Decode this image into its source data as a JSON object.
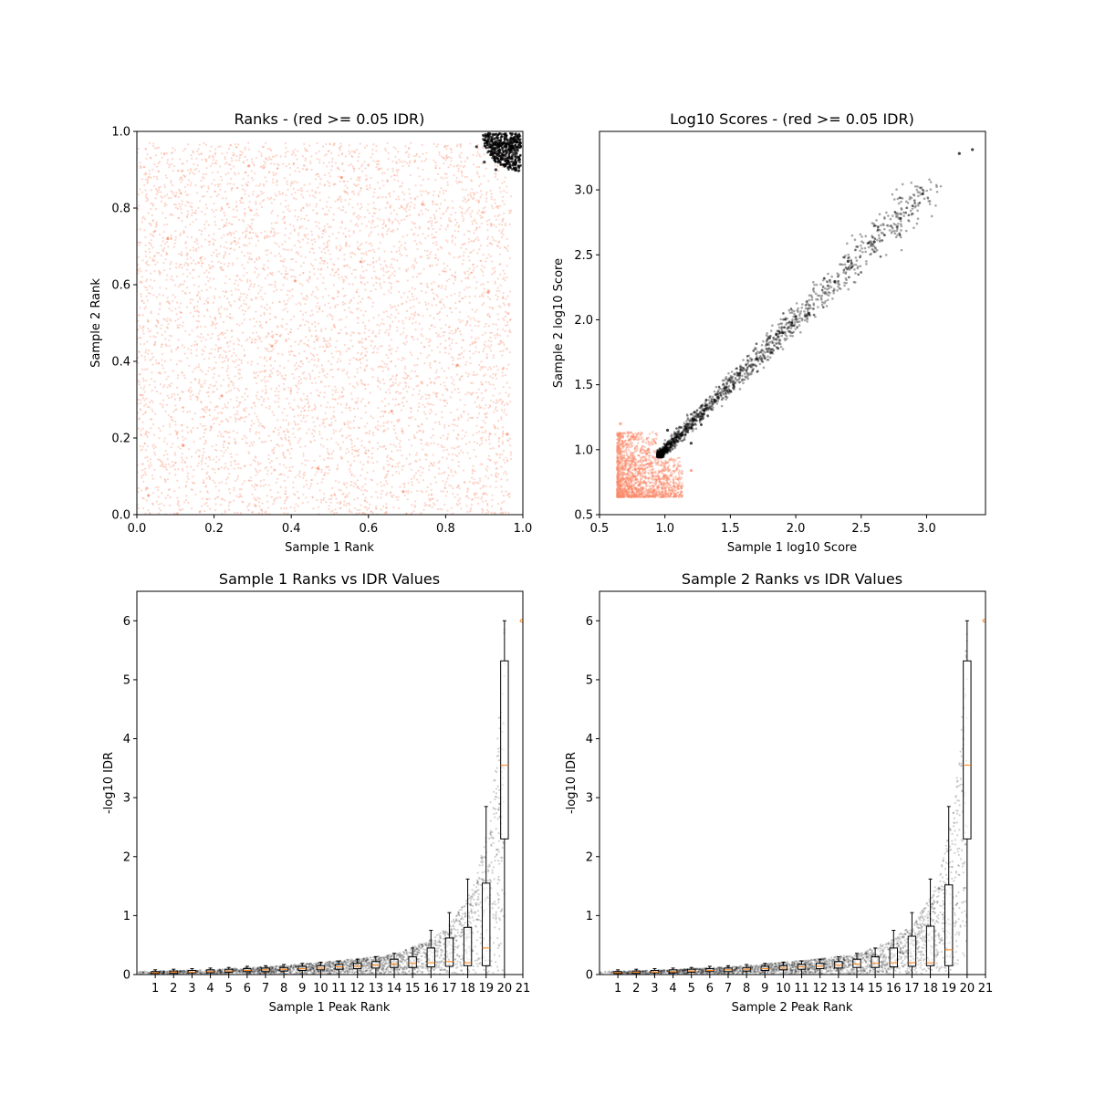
{
  "colors": {
    "pass": "#000000",
    "fail": "#fa8a6b",
    "median": "#ff7f0e",
    "box": "#000000",
    "background": "#ffffff"
  },
  "chart_data": [
    {
      "type": "scatter",
      "title": "Ranks - (red >= 0.05 IDR)",
      "xlabel": "Sample 1 Rank",
      "ylabel": "Sample 2 Rank",
      "xlim": [
        0,
        1
      ],
      "ylim": [
        0,
        1
      ],
      "xticks": [
        "0.0",
        "0.2",
        "0.4",
        "0.6",
        "0.8",
        "1.0"
      ],
      "yticks": [
        "0.0",
        "0.2",
        "0.4",
        "0.6",
        "0.8",
        "1.0"
      ],
      "grid": false,
      "series": [
        {
          "color": "fail",
          "points": [
            [
              0.03,
              0.05
            ],
            [
              0.12,
              0.18
            ],
            [
              0.22,
              0.31
            ],
            [
              0.35,
              0.44
            ],
            [
              0.47,
              0.12
            ],
            [
              0.58,
              0.66
            ],
            [
              0.66,
              0.27
            ],
            [
              0.74,
              0.81
            ],
            [
              0.83,
              0.39
            ],
            [
              0.91,
              0.58
            ],
            [
              0.08,
              0.72
            ],
            [
              0.29,
              0.91
            ],
            [
              0.41,
              0.61
            ],
            [
              0.53,
              0.88
            ],
            [
              0.69,
              0.06
            ],
            [
              0.96,
              0.21
            ]
          ]
        },
        {
          "color": "pass",
          "points": [
            [
              0.88,
              0.96
            ],
            [
              0.9,
              0.92
            ],
            [
              0.91,
              0.99
            ],
            [
              0.93,
              0.9
            ],
            [
              0.94,
              0.95
            ],
            [
              0.96,
              0.93
            ],
            [
              0.97,
              0.98
            ],
            [
              0.99,
              0.99
            ],
            [
              0.95,
              0.97
            ],
            [
              0.92,
              0.94
            ]
          ]
        }
      ]
    },
    {
      "type": "scatter",
      "title": "Log10 Scores - (red >= 0.05 IDR)",
      "xlabel": "Sample 1 log10 Score",
      "ylabel": "Sample 2 log10 Score",
      "xlim": [
        0.5,
        3.45
      ],
      "ylim": [
        0.5,
        3.45
      ],
      "xticks": [
        "0.5",
        "1.0",
        "1.5",
        "2.0",
        "2.5",
        "3.0"
      ],
      "yticks": [
        "0.5",
        "1.0",
        "1.5",
        "2.0",
        "2.5",
        "3.0"
      ],
      "grid": false,
      "series": [
        {
          "color": "fail",
          "points": [
            [
              0.64,
              0.64
            ],
            [
              0.7,
              0.75
            ],
            [
              0.8,
              0.68
            ],
            [
              0.9,
              0.9
            ],
            [
              0.75,
              1.1
            ],
            [
              1.0,
              0.8
            ],
            [
              1.1,
              0.72
            ],
            [
              1.2,
              0.84
            ],
            [
              0.66,
              1.2
            ],
            [
              0.86,
              0.97
            ]
          ]
        },
        {
          "color": "pass",
          "points": [
            [
              0.95,
              0.96
            ],
            [
              1.02,
              1.15
            ],
            [
              1.2,
              1.05
            ],
            [
              1.3,
              1.3
            ],
            [
              1.5,
              1.45
            ],
            [
              1.7,
              1.7
            ],
            [
              1.9,
              1.9
            ],
            [
              2.1,
              2.05
            ],
            [
              2.4,
              2.45
            ],
            [
              2.6,
              2.6
            ],
            [
              2.8,
              2.78
            ],
            [
              2.97,
              2.97
            ],
            [
              3.25,
              3.28
            ],
            [
              3.35,
              3.31
            ]
          ]
        }
      ]
    },
    {
      "type": "box",
      "title": "Sample 1 Ranks vs IDR Values",
      "xlabel": "Sample 1 Peak Rank",
      "ylabel": "-log10 IDR",
      "xlim": [
        0,
        21
      ],
      "ylim": [
        0,
        6.5
      ],
      "xticks": [
        "1",
        "2",
        "3",
        "4",
        "5",
        "6",
        "7",
        "8",
        "9",
        "10",
        "11",
        "12",
        "13",
        "14",
        "15",
        "16",
        "17",
        "18",
        "19",
        "20",
        "21"
      ],
      "yticks": [
        "0",
        "1",
        "2",
        "3",
        "4",
        "5",
        "6"
      ],
      "grid": false,
      "boxes": [
        {
          "position": 1,
          "q1": 0.02,
          "median": 0.03,
          "q3": 0.05,
          "whisker_low": 0.0,
          "whisker_high": 0.08
        },
        {
          "position": 2,
          "q1": 0.02,
          "median": 0.04,
          "q3": 0.06,
          "whisker_low": 0.0,
          "whisker_high": 0.09
        },
        {
          "position": 3,
          "q1": 0.03,
          "median": 0.04,
          "q3": 0.07,
          "whisker_low": 0.0,
          "whisker_high": 0.1
        },
        {
          "position": 4,
          "q1": 0.03,
          "median": 0.05,
          "q3": 0.08,
          "whisker_low": 0.0,
          "whisker_high": 0.11
        },
        {
          "position": 5,
          "q1": 0.04,
          "median": 0.06,
          "q3": 0.09,
          "whisker_low": 0.0,
          "whisker_high": 0.12
        },
        {
          "position": 6,
          "q1": 0.05,
          "median": 0.07,
          "q3": 0.1,
          "whisker_low": 0.0,
          "whisker_high": 0.14
        },
        {
          "position": 7,
          "q1": 0.05,
          "median": 0.08,
          "q3": 0.11,
          "whisker_low": 0.0,
          "whisker_high": 0.15
        },
        {
          "position": 8,
          "q1": 0.06,
          "median": 0.09,
          "q3": 0.12,
          "whisker_low": 0.0,
          "whisker_high": 0.17
        },
        {
          "position": 9,
          "q1": 0.07,
          "median": 0.1,
          "q3": 0.14,
          "whisker_low": 0.0,
          "whisker_high": 0.19
        },
        {
          "position": 10,
          "q1": 0.08,
          "median": 0.11,
          "q3": 0.15,
          "whisker_low": 0.0,
          "whisker_high": 0.21
        },
        {
          "position": 11,
          "q1": 0.09,
          "median": 0.13,
          "q3": 0.17,
          "whisker_low": 0.0,
          "whisker_high": 0.23
        },
        {
          "position": 12,
          "q1": 0.1,
          "median": 0.14,
          "q3": 0.19,
          "whisker_low": 0.0,
          "whisker_high": 0.26
        },
        {
          "position": 13,
          "q1": 0.11,
          "median": 0.16,
          "q3": 0.22,
          "whisker_low": 0.0,
          "whisker_high": 0.3
        },
        {
          "position": 14,
          "q1": 0.12,
          "median": 0.18,
          "q3": 0.26,
          "whisker_low": 0.0,
          "whisker_high": 0.36
        },
        {
          "position": 15,
          "q1": 0.12,
          "median": 0.19,
          "q3": 0.3,
          "whisker_low": 0.0,
          "whisker_high": 0.45
        },
        {
          "position": 16,
          "q1": 0.13,
          "median": 0.2,
          "q3": 0.45,
          "whisker_low": 0.0,
          "whisker_high": 0.75
        },
        {
          "position": 17,
          "q1": 0.14,
          "median": 0.22,
          "q3": 0.62,
          "whisker_low": 0.0,
          "whisker_high": 1.05
        },
        {
          "position": 18,
          "q1": 0.15,
          "median": 0.2,
          "q3": 0.8,
          "whisker_low": 0.0,
          "whisker_high": 1.62
        },
        {
          "position": 19,
          "q1": 0.15,
          "median": 0.45,
          "q3": 1.55,
          "whisker_low": 0.0,
          "whisker_high": 2.85
        },
        {
          "position": 20,
          "q1": 2.3,
          "median": 3.55,
          "q3": 5.32,
          "whisker_low": 0.0,
          "whisker_high": 6.0
        }
      ],
      "outliers": [
        [
          21,
          6.0
        ]
      ],
      "scatter_trend": [
        [
          0.0,
          0.05
        ],
        [
          4.0,
          0.08
        ],
        [
          8.0,
          0.15
        ],
        [
          12.0,
          0.27
        ],
        [
          14.0,
          0.35
        ],
        [
          16.0,
          0.6
        ],
        [
          17.0,
          0.85
        ],
        [
          18.0,
          1.3
        ],
        [
          18.5,
          1.7
        ],
        [
          19.0,
          2.4
        ],
        [
          19.5,
          3.5
        ],
        [
          19.8,
          4.8
        ],
        [
          20.0,
          6.0
        ]
      ]
    },
    {
      "type": "box",
      "title": "Sample 2 Ranks vs IDR Values",
      "xlabel": "Sample 2 Peak Rank",
      "ylabel": "-log10 IDR",
      "xlim": [
        0,
        21
      ],
      "ylim": [
        0,
        6.5
      ],
      "xticks": [
        "1",
        "2",
        "3",
        "4",
        "5",
        "6",
        "7",
        "8",
        "9",
        "10",
        "11",
        "12",
        "13",
        "14",
        "15",
        "16",
        "17",
        "18",
        "19",
        "20",
        "21"
      ],
      "yticks": [
        "0",
        "1",
        "2",
        "3",
        "4",
        "5",
        "6"
      ],
      "grid": false,
      "boxes": [
        {
          "position": 1,
          "q1": 0.02,
          "median": 0.03,
          "q3": 0.05,
          "whisker_low": 0.0,
          "whisker_high": 0.08
        },
        {
          "position": 2,
          "q1": 0.02,
          "median": 0.04,
          "q3": 0.06,
          "whisker_low": 0.0,
          "whisker_high": 0.09
        },
        {
          "position": 3,
          "q1": 0.03,
          "median": 0.04,
          "q3": 0.07,
          "whisker_low": 0.0,
          "whisker_high": 0.1
        },
        {
          "position": 4,
          "q1": 0.03,
          "median": 0.05,
          "q3": 0.08,
          "whisker_low": 0.0,
          "whisker_high": 0.11
        },
        {
          "position": 5,
          "q1": 0.04,
          "median": 0.06,
          "q3": 0.09,
          "whisker_low": 0.0,
          "whisker_high": 0.12
        },
        {
          "position": 6,
          "q1": 0.05,
          "median": 0.07,
          "q3": 0.1,
          "whisker_low": 0.0,
          "whisker_high": 0.14
        },
        {
          "position": 7,
          "q1": 0.05,
          "median": 0.08,
          "q3": 0.11,
          "whisker_low": 0.0,
          "whisker_high": 0.15
        },
        {
          "position": 8,
          "q1": 0.06,
          "median": 0.09,
          "q3": 0.12,
          "whisker_low": 0.0,
          "whisker_high": 0.17
        },
        {
          "position": 9,
          "q1": 0.07,
          "median": 0.1,
          "q3": 0.14,
          "whisker_low": 0.0,
          "whisker_high": 0.19
        },
        {
          "position": 10,
          "q1": 0.08,
          "median": 0.11,
          "q3": 0.15,
          "whisker_low": 0.0,
          "whisker_high": 0.21
        },
        {
          "position": 11,
          "q1": 0.09,
          "median": 0.13,
          "q3": 0.17,
          "whisker_low": 0.0,
          "whisker_high": 0.23
        },
        {
          "position": 12,
          "q1": 0.1,
          "median": 0.14,
          "q3": 0.19,
          "whisker_low": 0.0,
          "whisker_high": 0.26
        },
        {
          "position": 13,
          "q1": 0.11,
          "median": 0.16,
          "q3": 0.22,
          "whisker_low": 0.0,
          "whisker_high": 0.3
        },
        {
          "position": 14,
          "q1": 0.12,
          "median": 0.18,
          "q3": 0.26,
          "whisker_low": 0.0,
          "whisker_high": 0.36
        },
        {
          "position": 15,
          "q1": 0.12,
          "median": 0.19,
          "q3": 0.3,
          "whisker_low": 0.0,
          "whisker_high": 0.45
        },
        {
          "position": 16,
          "q1": 0.13,
          "median": 0.2,
          "q3": 0.45,
          "whisker_low": 0.0,
          "whisker_high": 0.75
        },
        {
          "position": 17,
          "q1": 0.14,
          "median": 0.2,
          "q3": 0.65,
          "whisker_low": 0.0,
          "whisker_high": 1.05
        },
        {
          "position": 18,
          "q1": 0.15,
          "median": 0.2,
          "q3": 0.82,
          "whisker_low": 0.0,
          "whisker_high": 1.62
        },
        {
          "position": 19,
          "q1": 0.15,
          "median": 0.42,
          "q3": 1.52,
          "whisker_low": 0.0,
          "whisker_high": 2.85
        },
        {
          "position": 20,
          "q1": 2.3,
          "median": 3.55,
          "q3": 5.32,
          "whisker_low": 0.0,
          "whisker_high": 6.0
        }
      ],
      "outliers": [
        [
          21,
          6.0
        ]
      ],
      "scatter_trend": [
        [
          0.0,
          0.05
        ],
        [
          4.0,
          0.08
        ],
        [
          8.0,
          0.15
        ],
        [
          12.0,
          0.27
        ],
        [
          14.0,
          0.35
        ],
        [
          16.0,
          0.6
        ],
        [
          17.0,
          0.85
        ],
        [
          18.0,
          1.3
        ],
        [
          18.5,
          1.7
        ],
        [
          19.0,
          2.4
        ],
        [
          19.5,
          3.5
        ],
        [
          19.8,
          4.8
        ],
        [
          20.0,
          6.0
        ]
      ]
    }
  ]
}
